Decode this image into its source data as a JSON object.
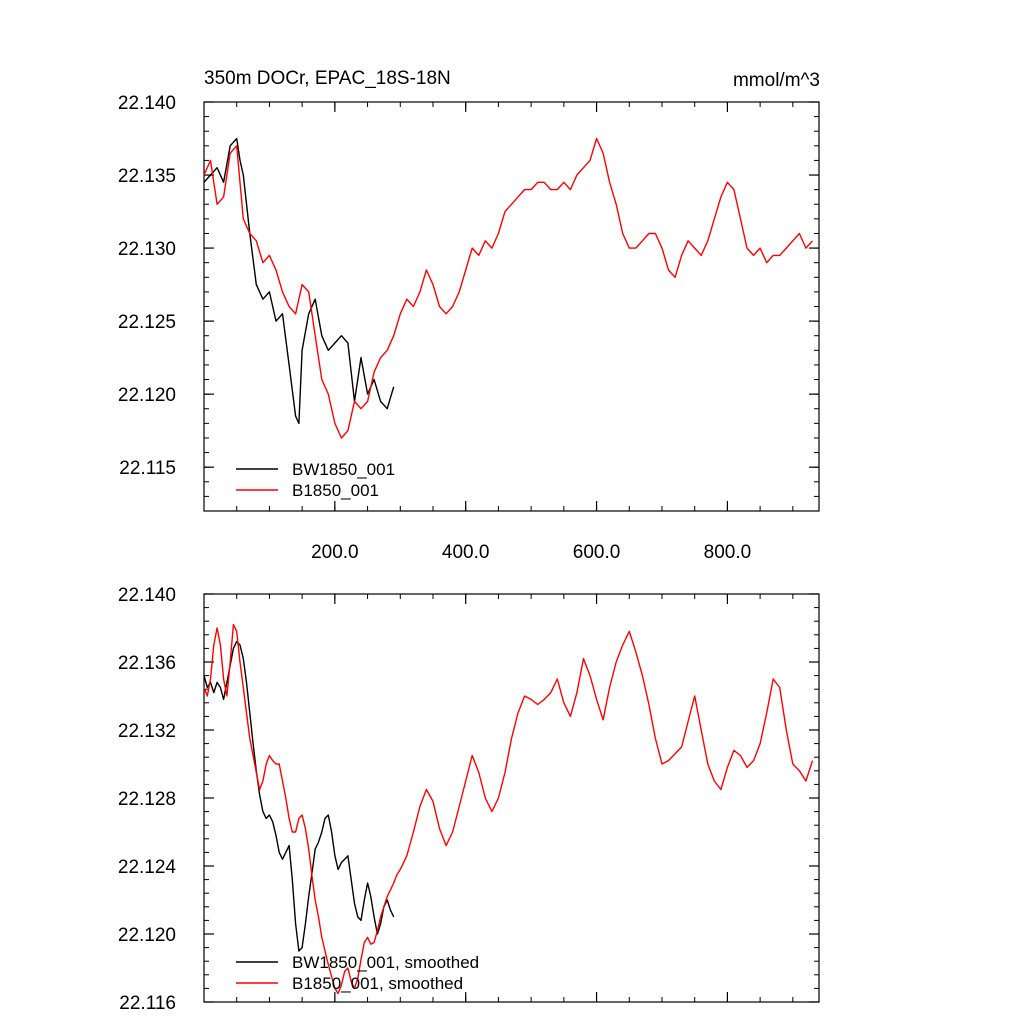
{
  "chart_data": [
    {
      "type": "line",
      "title": "350m DOCr, EPAC_18S-18N",
      "units": "mmol/m^3",
      "xlim": [
        0,
        940
      ],
      "ylim": [
        22.112,
        22.14
      ],
      "x_ticks": [
        200,
        400,
        600,
        800
      ],
      "x_tick_labels": [
        "200.0",
        "400.0",
        "600.0",
        "800.0"
      ],
      "y_ticks": [
        22.115,
        22.12,
        22.125,
        22.13,
        22.135,
        22.14
      ],
      "y_tick_labels": [
        "22.115",
        "22.120",
        "22.125",
        "22.130",
        "22.135",
        "22.140"
      ],
      "grid": false,
      "legend_position": "bottom-left",
      "series": [
        {
          "name": "BW1850_001",
          "color": "#000000",
          "x": [
            0,
            10,
            20,
            30,
            40,
            50,
            55,
            60,
            70,
            80,
            90,
            100,
            110,
            120,
            130,
            140,
            145,
            150,
            160,
            170,
            180,
            190,
            200,
            210,
            220,
            230,
            240,
            250,
            260,
            270,
            280,
            290
          ],
          "values": [
            22.1345,
            22.135,
            22.1355,
            22.1345,
            22.137,
            22.1375,
            22.136,
            22.135,
            22.131,
            22.1275,
            22.1265,
            22.127,
            22.125,
            22.1255,
            22.122,
            22.1185,
            22.118,
            22.123,
            22.1255,
            22.1265,
            22.124,
            22.123,
            22.1235,
            22.124,
            22.1235,
            22.1195,
            22.1225,
            22.12,
            22.121,
            22.1195,
            22.119,
            22.1205
          ]
        },
        {
          "name": "B1850_001",
          "color": "#ff0000",
          "x": [
            0,
            10,
            20,
            30,
            40,
            50,
            60,
            70,
            80,
            90,
            100,
            110,
            120,
            130,
            140,
            150,
            160,
            170,
            180,
            190,
            200,
            210,
            220,
            230,
            240,
            250,
            260,
            270,
            280,
            290,
            300,
            310,
            320,
            330,
            340,
            350,
            360,
            370,
            380,
            390,
            400,
            410,
            420,
            430,
            440,
            450,
            460,
            470,
            480,
            490,
            500,
            510,
            520,
            530,
            540,
            550,
            560,
            570,
            580,
            590,
            600,
            610,
            620,
            630,
            640,
            650,
            660,
            670,
            680,
            690,
            700,
            710,
            720,
            730,
            740,
            750,
            760,
            770,
            780,
            790,
            800,
            810,
            820,
            830,
            840,
            850,
            860,
            870,
            880,
            890,
            900,
            910,
            920,
            930
          ],
          "values": [
            22.135,
            22.136,
            22.133,
            22.1335,
            22.1365,
            22.137,
            22.132,
            22.131,
            22.1305,
            22.129,
            22.1295,
            22.1285,
            22.127,
            22.126,
            22.1255,
            22.1275,
            22.127,
            22.124,
            22.121,
            22.12,
            22.118,
            22.117,
            22.1175,
            22.1195,
            22.119,
            22.1195,
            22.1215,
            22.1225,
            22.123,
            22.124,
            22.1255,
            22.1265,
            22.126,
            22.127,
            22.1285,
            22.1275,
            22.126,
            22.1255,
            22.126,
            22.127,
            22.1285,
            22.13,
            22.1295,
            22.1305,
            22.13,
            22.131,
            22.1325,
            22.133,
            22.1335,
            22.134,
            22.134,
            22.1345,
            22.1345,
            22.134,
            22.134,
            22.1345,
            22.134,
            22.135,
            22.1355,
            22.136,
            22.1375,
            22.1365,
            22.1345,
            22.133,
            22.131,
            22.13,
            22.13,
            22.1305,
            22.131,
            22.131,
            22.13,
            22.1285,
            22.128,
            22.1295,
            22.1305,
            22.13,
            22.1295,
            22.1305,
            22.132,
            22.1335,
            22.1345,
            22.134,
            22.132,
            22.13,
            22.1295,
            22.13,
            22.129,
            22.1295,
            22.1295,
            22.13,
            22.1305,
            22.131,
            22.13,
            22.1305
          ]
        }
      ]
    },
    {
      "type": "line",
      "xlim": [
        0,
        940
      ],
      "ylim": [
        22.116,
        22.14
      ],
      "x_ticks": [
        200,
        400,
        600,
        800
      ],
      "x_tick_labels": [],
      "y_ticks": [
        22.116,
        22.12,
        22.124,
        22.128,
        22.132,
        22.136,
        22.14
      ],
      "y_tick_labels": [
        "22.116",
        "22.120",
        "22.124",
        "22.128",
        "22.132",
        "22.136",
        "22.140"
      ],
      "grid": false,
      "legend_position": "bottom-left",
      "series": [
        {
          "name": "BW1850_001, smoothed",
          "color": "#000000",
          "x": [
            0,
            5,
            10,
            15,
            20,
            25,
            30,
            35,
            40,
            45,
            50,
            55,
            60,
            65,
            70,
            75,
            80,
            85,
            90,
            95,
            100,
            105,
            110,
            115,
            120,
            125,
            130,
            135,
            140,
            145,
            150,
            155,
            160,
            165,
            170,
            175,
            180,
            185,
            190,
            195,
            200,
            205,
            210,
            215,
            220,
            225,
            230,
            235,
            240,
            245,
            250,
            255,
            260,
            265,
            270,
            275,
            280,
            285,
            290
          ],
          "values": [
            22.1352,
            22.1345,
            22.1348,
            22.1342,
            22.1348,
            22.1345,
            22.1338,
            22.1348,
            22.1358,
            22.1368,
            22.1372,
            22.137,
            22.1362,
            22.1348,
            22.133,
            22.1312,
            22.1296,
            22.1282,
            22.1272,
            22.1268,
            22.127,
            22.1266,
            22.1258,
            22.1248,
            22.1244,
            22.1248,
            22.1252,
            22.1232,
            22.1206,
            22.119,
            22.1192,
            22.1206,
            22.1222,
            22.1236,
            22.125,
            22.1254,
            22.126,
            22.1268,
            22.127,
            22.126,
            22.1246,
            22.1238,
            22.1242,
            22.1244,
            22.1246,
            22.1232,
            22.1218,
            22.121,
            22.1208,
            22.122,
            22.123,
            22.1222,
            22.121,
            22.12,
            22.1206,
            22.1216,
            22.122,
            22.1214,
            22.121
          ]
        },
        {
          "name": "B1850_001, smoothed",
          "color": "#ff0000",
          "x": [
            0,
            5,
            10,
            15,
            20,
            25,
            30,
            35,
            40,
            45,
            50,
            55,
            60,
            65,
            70,
            75,
            80,
            85,
            90,
            95,
            100,
            105,
            110,
            115,
            120,
            125,
            130,
            135,
            140,
            145,
            150,
            155,
            160,
            165,
            170,
            175,
            180,
            185,
            190,
            195,
            200,
            205,
            210,
            215,
            220,
            225,
            230,
            235,
            240,
            245,
            250,
            255,
            260,
            265,
            270,
            275,
            280,
            285,
            290,
            295,
            300,
            310,
            320,
            330,
            340,
            350,
            360,
            370,
            380,
            390,
            400,
            410,
            420,
            430,
            440,
            450,
            460,
            470,
            480,
            490,
            500,
            510,
            520,
            530,
            540,
            550,
            560,
            570,
            580,
            590,
            600,
            610,
            620,
            630,
            640,
            650,
            660,
            670,
            680,
            690,
            700,
            710,
            720,
            730,
            740,
            750,
            760,
            770,
            780,
            790,
            800,
            810,
            820,
            830,
            840,
            850,
            860,
            870,
            880,
            890,
            900,
            910,
            920,
            930
          ],
          "values": [
            22.1345,
            22.134,
            22.135,
            22.137,
            22.138,
            22.137,
            22.135,
            22.134,
            22.136,
            22.1382,
            22.1378,
            22.136,
            22.1345,
            22.133,
            22.1315,
            22.1305,
            22.1295,
            22.1285,
            22.129,
            22.13,
            22.1305,
            22.1302,
            22.13,
            22.13,
            22.129,
            22.128,
            22.1268,
            22.126,
            22.126,
            22.1268,
            22.127,
            22.1262,
            22.125,
            22.1234,
            22.122,
            22.121,
            22.1198,
            22.119,
            22.1182,
            22.1175,
            22.1168,
            22.1165,
            22.117,
            22.1178,
            22.118,
            22.1172,
            22.1168,
            22.1174,
            22.1185,
            22.1195,
            22.1198,
            22.1194,
            22.1195,
            22.1202,
            22.121,
            22.1216,
            22.1222,
            22.1226,
            22.123,
            22.1235,
            22.1238,
            22.1246,
            22.126,
            22.1275,
            22.1285,
            22.1278,
            22.1262,
            22.1252,
            22.126,
            22.1275,
            22.129,
            22.1305,
            22.1295,
            22.128,
            22.1272,
            22.128,
            22.1295,
            22.1315,
            22.133,
            22.134,
            22.1338,
            22.1335,
            22.1338,
            22.1342,
            22.135,
            22.1336,
            22.1328,
            22.1342,
            22.1362,
            22.1352,
            22.1338,
            22.1326,
            22.1345,
            22.136,
            22.137,
            22.1378,
            22.1366,
            22.1352,
            22.1335,
            22.1315,
            22.13,
            22.1302,
            22.1306,
            22.131,
            22.1325,
            22.134,
            22.132,
            22.13,
            22.129,
            22.1285,
            22.1298,
            22.1308,
            22.1305,
            22.1298,
            22.1302,
            22.1312,
            22.133,
            22.135,
            22.1345,
            22.132,
            22.13,
            22.1296,
            22.129,
            22.1302
          ]
        }
      ]
    }
  ]
}
